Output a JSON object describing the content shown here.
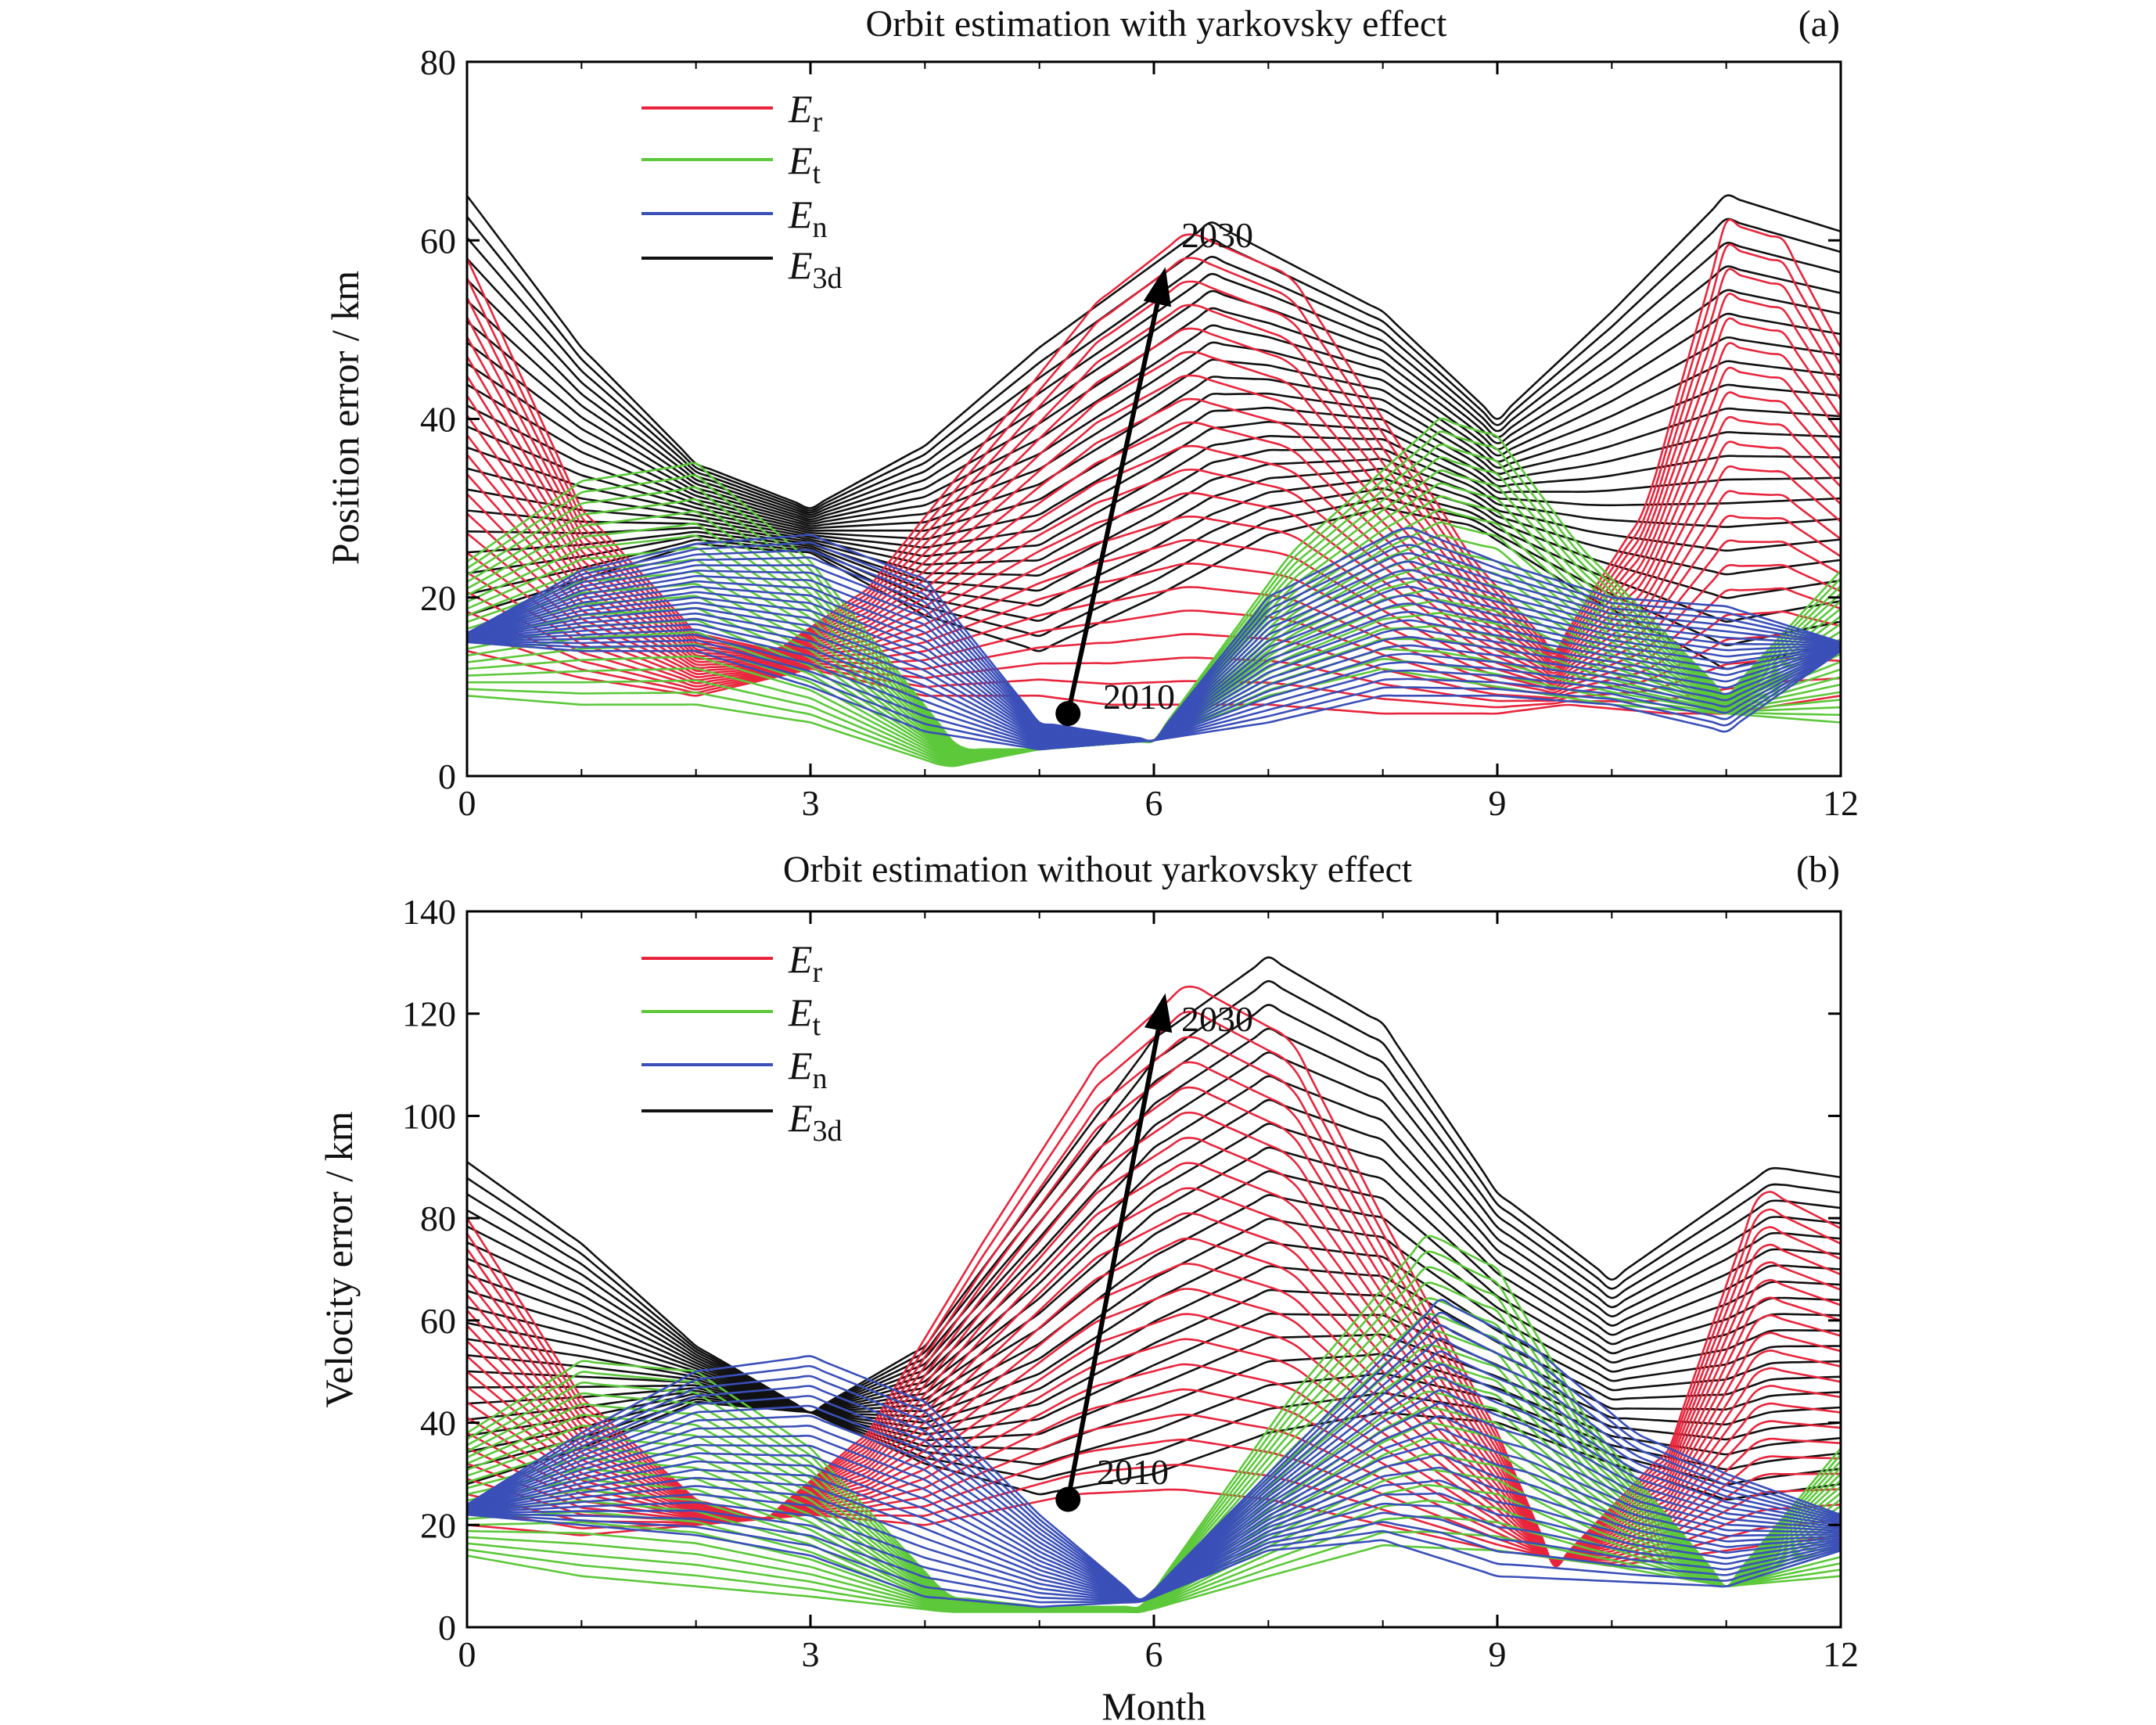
{
  "colors": {
    "E_r": "#e8253c",
    "E_t": "#5cc83a",
    "E_n": "#3a4fb8",
    "E_3d": "#111111",
    "axis": "#000000",
    "background": "#ffffff"
  },
  "x_axis_label": "Month",
  "chart_data": [
    {
      "type": "line",
      "title": "Orbit estimation with yarkovsky effect",
      "panel_label": "(a)",
      "ylabel": "Position error / km",
      "xlabel": "",
      "xlim": [
        0,
        12
      ],
      "ylim": [
        0,
        80
      ],
      "xticks": [
        0,
        3,
        6,
        9,
        12
      ],
      "yticks": [
        0,
        20,
        40,
        60,
        80
      ],
      "legend_placement": "top-left",
      "grid": false,
      "legend": [
        {
          "key": "E_r",
          "base": "E",
          "sub": "r"
        },
        {
          "key": "E_t",
          "base": "E",
          "sub": "t"
        },
        {
          "key": "E_n",
          "base": "E",
          "sub": "n"
        },
        {
          "key": "E_3d",
          "base": "E",
          "sub": "3d"
        }
      ],
      "family_size": 21,
      "annotations": {
        "start_label": "2010",
        "end_label": "2030",
        "arrow_from": [
          5.25,
          7
        ],
        "arrow_to": [
          6.1,
          57
        ]
      },
      "series": [
        {
          "key": "E_r",
          "curves": [
            {
              "x": [
                0,
                1,
                2,
                3,
                4,
                5,
                5.6,
                6.3,
                7,
                8,
                9,
                9.6,
                10.5,
                11,
                12
              ],
              "y": [
                14,
                11,
                9,
                12,
                9,
                9,
                8,
                8,
                8,
                7,
                7,
                8,
                7,
                7,
                9
              ]
            },
            {
              "x": [
                0,
                1,
                2,
                2.7,
                3.5,
                4.5,
                5.5,
                6.3,
                7.2,
                8,
                8.8,
                9.5,
                10.3,
                11,
                11.5,
                12
              ],
              "y": [
                58,
                30,
                16,
                14,
                21,
                37,
                53,
                61,
                56,
                40,
                24,
                14,
                30,
                62,
                60,
                48
              ]
            }
          ]
        },
        {
          "key": "E_t",
          "curves": [
            {
              "x": [
                0,
                1,
                2,
                3,
                4.2,
                5,
                6,
                7,
                8,
                9,
                10,
                11,
                12
              ],
              "y": [
                9,
                8,
                8,
                6,
                1,
                3,
                4,
                9,
                12,
                10,
                8,
                7,
                6
              ]
            },
            {
              "x": [
                0,
                1,
                2,
                3,
                4.3,
                5,
                6,
                7.2,
                8.5,
                9,
                9.7,
                11,
                12
              ],
              "y": [
                24,
                33,
                35,
                24,
                3,
                3,
                4,
                25,
                40,
                38,
                26,
                9,
                23
              ]
            }
          ]
        },
        {
          "key": "E_n",
          "curves": [
            {
              "x": [
                0,
                1,
                2,
                3,
                4,
                5,
                6,
                7,
                8,
                9,
                10,
                11,
                12
              ],
              "y": [
                15,
                14,
                14,
                10,
                5,
                3,
                4,
                6,
                9,
                9,
                8,
                5,
                14
              ]
            },
            {
              "x": [
                0,
                1,
                2,
                3,
                4,
                5,
                6,
                7,
                8.2,
                9,
                10,
                11,
                12
              ],
              "y": [
                16,
                23,
                26,
                27,
                22,
                6,
                4,
                20,
                28,
                24,
                20,
                19,
                15
              ]
            }
          ]
        },
        {
          "key": "E_3d",
          "curves": [
            {
              "x": [
                0,
                1,
                2,
                3,
                4,
                5,
                6,
                7,
                8,
                8.8,
                9.8,
                11,
                12
              ],
              "y": [
                18,
                22,
                26,
                25,
                18,
                14,
                20,
                27,
                30,
                28,
                20,
                12,
                15
              ]
            },
            {
              "x": [
                0,
                1,
                2,
                3,
                4,
                5,
                6.5,
                8,
                9,
                10,
                11,
                12
              ],
              "y": [
                65,
                48,
                35,
                30,
                37,
                48,
                62,
                52,
                40,
                52,
                65,
                61
              ]
            }
          ]
        }
      ]
    },
    {
      "type": "line",
      "title": "Orbit estimation without yarkovsky effect",
      "panel_label": "(b)",
      "ylabel": "Velocity error / km",
      "xlabel": "Month",
      "xlim": [
        0,
        12
      ],
      "ylim": [
        0,
        140
      ],
      "xticks": [
        0,
        3,
        6,
        9,
        12
      ],
      "yticks": [
        0,
        20,
        40,
        60,
        80,
        100,
        120,
        140
      ],
      "legend_placement": "top-left",
      "grid": false,
      "legend": [
        {
          "key": "E_r",
          "base": "E",
          "sub": "r"
        },
        {
          "key": "E_t",
          "base": "E",
          "sub": "t"
        },
        {
          "key": "E_n",
          "base": "E",
          "sub": "n"
        },
        {
          "key": "E_3d",
          "base": "E",
          "sub": "3d"
        }
      ],
      "family_size": 21,
      "annotations": {
        "start_label": "2010",
        "end_label": "2030",
        "arrow_from": [
          5.25,
          25
        ],
        "arrow_to": [
          6.1,
          124
        ]
      },
      "series": [
        {
          "key": "E_r",
          "curves": [
            {
              "x": [
                0,
                1,
                2,
                3,
                4,
                5.3,
                6.2,
                7,
                8,
                9,
                10,
                11,
                12
              ],
              "y": [
                20,
                18,
                20,
                22,
                20,
                26,
                27,
                25,
                20,
                15,
                12,
                15,
                18
              ]
            },
            {
              "x": [
                0,
                1,
                2,
                2.6,
                3.5,
                4.5,
                5.5,
                6.3,
                7.2,
                8,
                9,
                9.5,
                10.5,
                11.3,
                12
              ],
              "y": [
                80,
                45,
                25,
                21,
                38,
                75,
                110,
                126,
                115,
                80,
                38,
                12,
                35,
                86,
                78
              ]
            }
          ]
        },
        {
          "key": "E_t",
          "curves": [
            {
              "x": [
                0,
                1,
                2,
                3,
                4.2,
                5,
                5.9,
                7,
                8,
                9,
                10,
                11,
                12
              ],
              "y": [
                14,
                10,
                8,
                6,
                3,
                3,
                3,
                10,
                16,
                15,
                12,
                8,
                10
              ]
            },
            {
              "x": [
                0,
                1,
                2,
                3,
                4.2,
                5,
                5.9,
                7.2,
                8.4,
                9,
                9.8,
                11,
                12
              ],
              "y": [
                38,
                52,
                50,
                35,
                6,
                4,
                4,
                45,
                77,
                70,
                40,
                8,
                35
              ]
            }
          ]
        },
        {
          "key": "E_n",
          "curves": [
            {
              "x": [
                0,
                1,
                2,
                3,
                4,
                5,
                5.9,
                7,
                8,
                9,
                10,
                11,
                12
              ],
              "y": [
                22,
                20,
                18,
                14,
                6,
                4,
                5,
                15,
                17,
                10,
                9,
                8,
                15
              ]
            },
            {
              "x": [
                0,
                1,
                2,
                3,
                4,
                5,
                5.9,
                7,
                8.5,
                9.3,
                10.2,
                11,
                12
              ],
              "y": [
                24,
                38,
                50,
                53,
                44,
                22,
                5,
                30,
                64,
                55,
                38,
                30,
                22
              ]
            }
          ]
        },
        {
          "key": "E_3d",
          "curves": [
            {
              "x": [
                0,
                1,
                2,
                3,
                4,
                5,
                6,
                7,
                8,
                9,
                10,
                11,
                12
              ],
              "y": [
                28,
                35,
                44,
                42,
                32,
                26,
                30,
                38,
                42,
                40,
                32,
                25,
                28
              ]
            },
            {
              "x": [
                0,
                1,
                2,
                3,
                4,
                5,
                6,
                7,
                8,
                9,
                10,
                11.4,
                12
              ],
              "y": [
                91,
                75,
                55,
                42,
                55,
                85,
                115,
                131,
                118,
                85,
                68,
                90,
                88
              ]
            }
          ]
        }
      ]
    }
  ]
}
